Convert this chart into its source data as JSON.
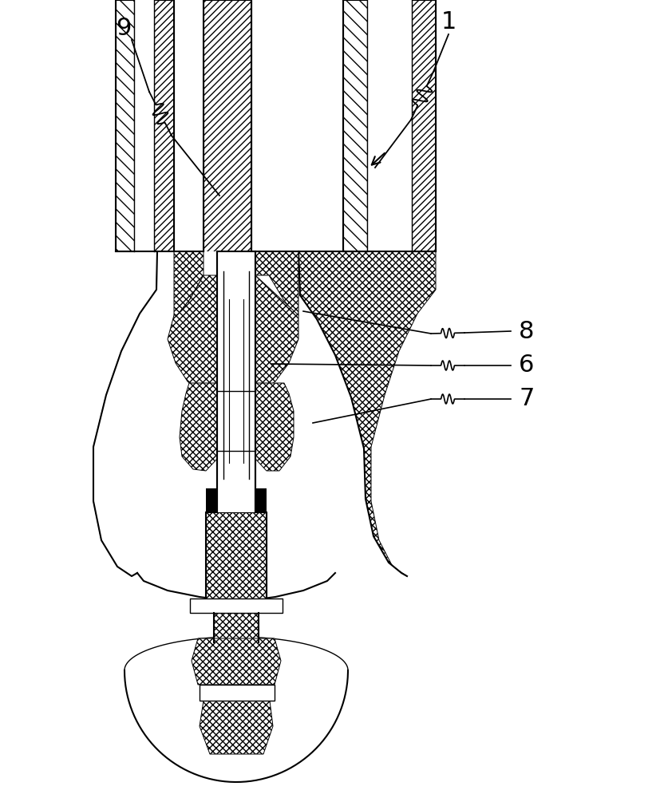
{
  "bg_color": "#ffffff",
  "line_color": "#000000",
  "label_1": "1",
  "label_6": "6",
  "label_7": "7",
  "label_8": "8",
  "label_9": "9",
  "label_fontsize": 22,
  "figsize": [
    8.27,
    10.0
  ],
  "dpi": 100
}
